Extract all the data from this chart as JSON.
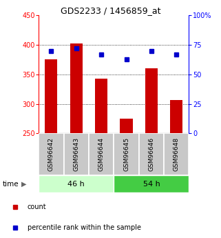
{
  "title": "GDS2233 / 1456859_at",
  "categories": [
    "GSM96642",
    "GSM96643",
    "GSM96644",
    "GSM96645",
    "GSM96646",
    "GSM96648"
  ],
  "counts": [
    375,
    402,
    343,
    275,
    360,
    307
  ],
  "percentiles": [
    70,
    72,
    67,
    63,
    70,
    67
  ],
  "ymin": 250,
  "ymax": 450,
  "y2min": 0,
  "y2max": 100,
  "yticks": [
    250,
    300,
    350,
    400,
    450
  ],
  "y2ticks": [
    0,
    25,
    50,
    75,
    100
  ],
  "bar_color": "#cc0000",
  "dot_color": "#0000cc",
  "group1_label": "46 h",
  "group2_label": "54 h",
  "group1_indices": [
    0,
    1,
    2
  ],
  "group2_indices": [
    3,
    4,
    5
  ],
  "group1_bg": "#ccffcc",
  "group2_bg": "#44cc44",
  "label_area_bg": "#c8c8c8",
  "legend_count_label": "count",
  "legend_pct_label": "percentile rank within the sample",
  "title_fontsize": 9,
  "tick_fontsize": 7,
  "label_fontsize": 6.5,
  "group_fontsize": 8,
  "legend_fontsize": 7
}
